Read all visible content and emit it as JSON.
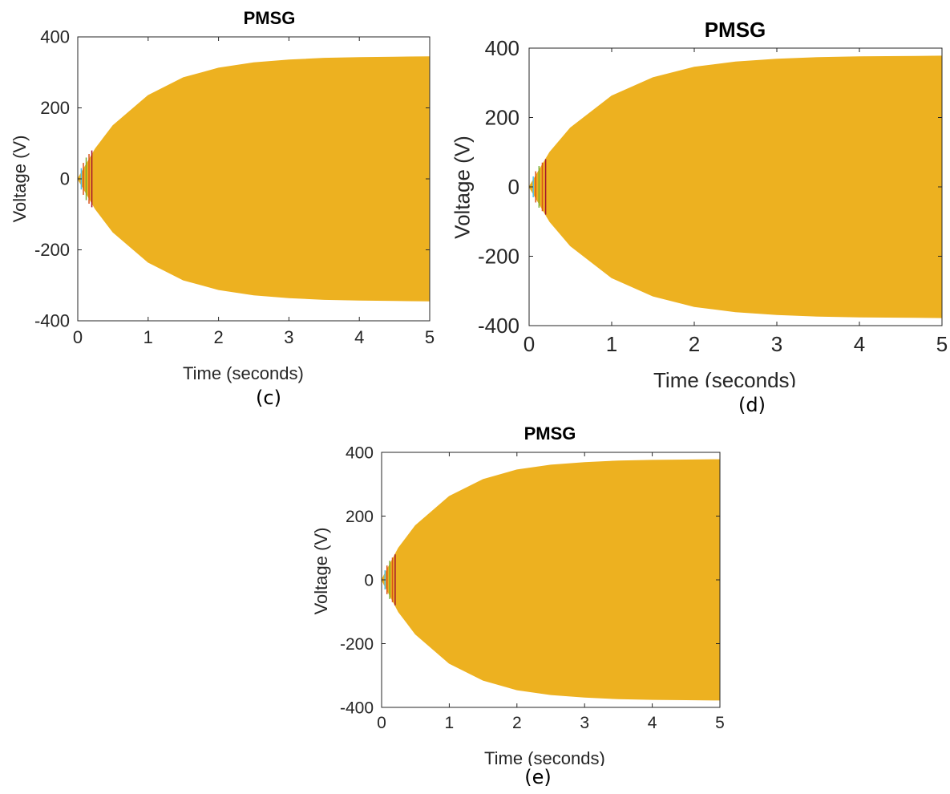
{
  "chart_data": [
    {
      "type": "line",
      "title": "PMSG",
      "xlabel": "Time (seconds)",
      "ylabel": "Voltage (V)",
      "xlim": [
        0,
        5
      ],
      "ylim": [
        -400,
        400
      ],
      "xticks": [
        0,
        1,
        2,
        3,
        4,
        5
      ],
      "yticks": [
        -400,
        -200,
        0,
        200,
        400
      ],
      "caption": "(c)",
      "grid": false,
      "series": [
        {
          "envelope_x": [
            0,
            0.25,
            0.5,
            1,
            1.5,
            2,
            2.5,
            3,
            3.5,
            4,
            4.5,
            5
          ],
          "envelope_y": [
            0,
            85,
            150,
            235,
            285,
            312,
            327,
            335,
            340,
            342,
            343,
            344
          ],
          "color": "#EDB120"
        }
      ]
    },
    {
      "type": "line",
      "title": "PMSG",
      "xlabel": "Time (seconds)",
      "ylabel": "Voltage (V)",
      "xlim": [
        0,
        5
      ],
      "ylim": [
        -400,
        400
      ],
      "xticks": [
        0,
        1,
        2,
        3,
        4,
        5
      ],
      "yticks": [
        -400,
        -200,
        0,
        200,
        400
      ],
      "caption": "(d)",
      "grid": false,
      "series": [
        {
          "envelope_x": [
            0,
            0.25,
            0.5,
            1,
            1.5,
            2,
            2.5,
            3,
            3.5,
            4,
            4.5,
            5
          ],
          "envelope_y": [
            0,
            100,
            170,
            262,
            315,
            345,
            360,
            368,
            373,
            375,
            376,
            377
          ],
          "color": "#EDB120"
        }
      ]
    },
    {
      "type": "line",
      "title": "PMSG",
      "xlabel": "Time (seconds)",
      "ylabel": "Voltage (V)",
      "xlim": [
        0,
        5
      ],
      "ylim": [
        -400,
        400
      ],
      "xticks": [
        0,
        1,
        2,
        3,
        4,
        5
      ],
      "yticks": [
        -400,
        -200,
        0,
        200,
        400
      ],
      "caption": "(e)",
      "grid": false,
      "series": [
        {
          "envelope_x": [
            0,
            0.25,
            0.5,
            1,
            1.5,
            2,
            2.5,
            3,
            3.5,
            4,
            4.5,
            5
          ],
          "envelope_y": [
            0,
            100,
            170,
            262,
            315,
            345,
            360,
            368,
            373,
            375,
            376,
            377
          ],
          "color": "#EDB120"
        }
      ]
    }
  ]
}
